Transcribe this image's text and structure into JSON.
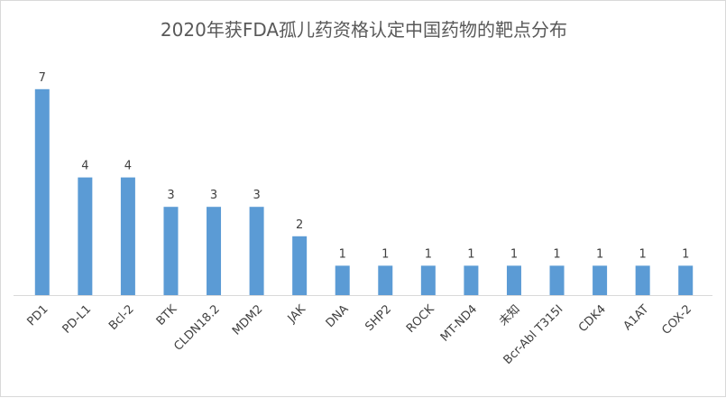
{
  "chart_data": {
    "type": "bar",
    "title": "2020年获FDA孤儿药资格认定中国药物的靶点分布",
    "categories": [
      "PD1",
      "PD-L1",
      "Bcl-2",
      "BTK",
      "CLDN18.2",
      "MDM2",
      "JAK",
      "DNA",
      "SHP2",
      "ROCK",
      "MT-ND4",
      "未知",
      "Bcr-Abl T315I",
      "CDK4",
      "A1AT",
      "COX-2"
    ],
    "values": [
      7,
      4,
      4,
      3,
      3,
      3,
      2,
      1,
      1,
      1,
      1,
      1,
      1,
      1,
      1,
      1
    ],
    "ylim": [
      0,
      7
    ],
    "grid": false,
    "legend": "none",
    "bar_color": "#5b9bd5",
    "label_color": "#404040",
    "axis_color": "#d9d9d9"
  }
}
